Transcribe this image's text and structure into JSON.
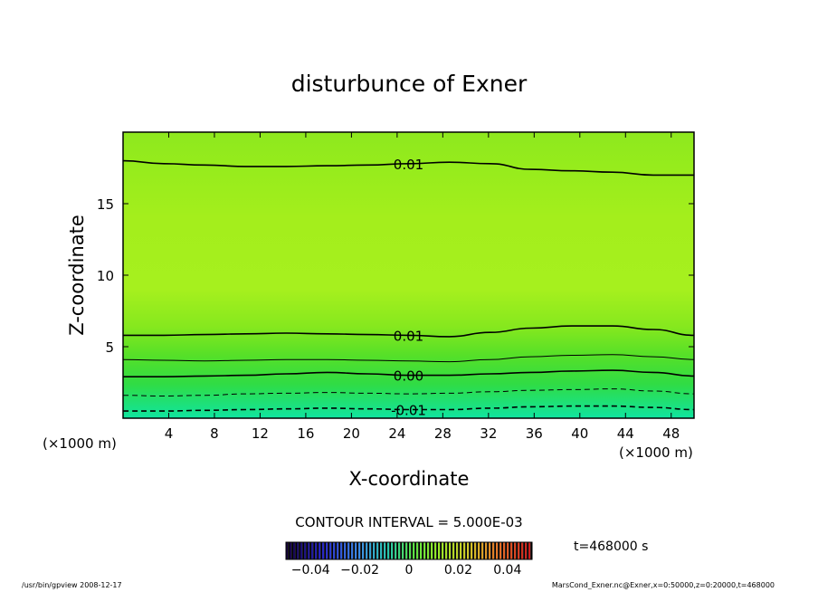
{
  "chart_data": {
    "type": "heatmap",
    "title": "disturbunce of Exner",
    "xlabel": "X-coordinate",
    "ylabel": "Z-coordinate",
    "x_unit": "(×1000 m)",
    "y_unit": "(×1000 m)",
    "xlim": [
      0,
      50
    ],
    "ylim": [
      0,
      20
    ],
    "x_ticks": [
      4,
      8,
      12,
      16,
      20,
      24,
      28,
      32,
      36,
      40,
      44,
      48
    ],
    "y_ticks": [
      5,
      10,
      15
    ],
    "contour_interval_text": "CONTOUR INTERVAL = 5.000E-03",
    "time_text": "t=468000 s",
    "colorbar": {
      "range": [
        -0.05,
        0.05
      ],
      "tick_values": [
        -0.04,
        -0.02,
        0,
        0.02,
        0.04
      ],
      "tick_labels": [
        "−0.04",
        "−0.02",
        "0",
        "0.02",
        "0.04"
      ]
    },
    "contours": [
      {
        "level": 0.01,
        "label": "0.01",
        "dashed": false,
        "z": [
          5.8,
          5.8,
          5.85,
          5.9,
          5.95,
          5.9,
          5.85,
          5.8,
          5.7,
          6.0,
          6.3,
          6.45,
          6.45,
          6.2,
          5.8
        ]
      },
      {
        "level": 0.005,
        "label": "",
        "dashed": false,
        "z": [
          4.1,
          4.05,
          4.0,
          4.05,
          4.1,
          4.1,
          4.05,
          4.0,
          3.95,
          4.1,
          4.3,
          4.4,
          4.45,
          4.3,
          4.1
        ]
      },
      {
        "level": 0.0,
        "label": "0.00",
        "dashed": false,
        "z": [
          2.9,
          2.9,
          2.95,
          3.0,
          3.1,
          3.2,
          3.1,
          3.0,
          3.0,
          3.1,
          3.2,
          3.3,
          3.35,
          3.2,
          2.95
        ]
      },
      {
        "level": -0.005,
        "label": "",
        "dashed": true,
        "z": [
          1.6,
          1.55,
          1.6,
          1.7,
          1.75,
          1.8,
          1.75,
          1.7,
          1.75,
          1.85,
          1.95,
          2.0,
          2.05,
          1.9,
          1.7
        ]
      },
      {
        "level": -0.01,
        "label": "-0.01",
        "dashed": true,
        "z": [
          0.5,
          0.5,
          0.55,
          0.6,
          0.65,
          0.7,
          0.65,
          0.6,
          0.6,
          0.7,
          0.8,
          0.85,
          0.85,
          0.75,
          0.6
        ]
      },
      {
        "level": 0.01,
        "label": "0.01",
        "dashed": false,
        "z": [
          18.0,
          17.8,
          17.7,
          17.6,
          17.6,
          17.65,
          17.7,
          17.8,
          17.9,
          17.8,
          17.4,
          17.3,
          17.2,
          17.0,
          17.0
        ]
      }
    ]
  },
  "footer": {
    "left": "/usr/bin/gpview   2008-12-17",
    "right": "MarsCond_Exner.nc@Exner,x=0:50000,z=0:20000,t=468000"
  }
}
